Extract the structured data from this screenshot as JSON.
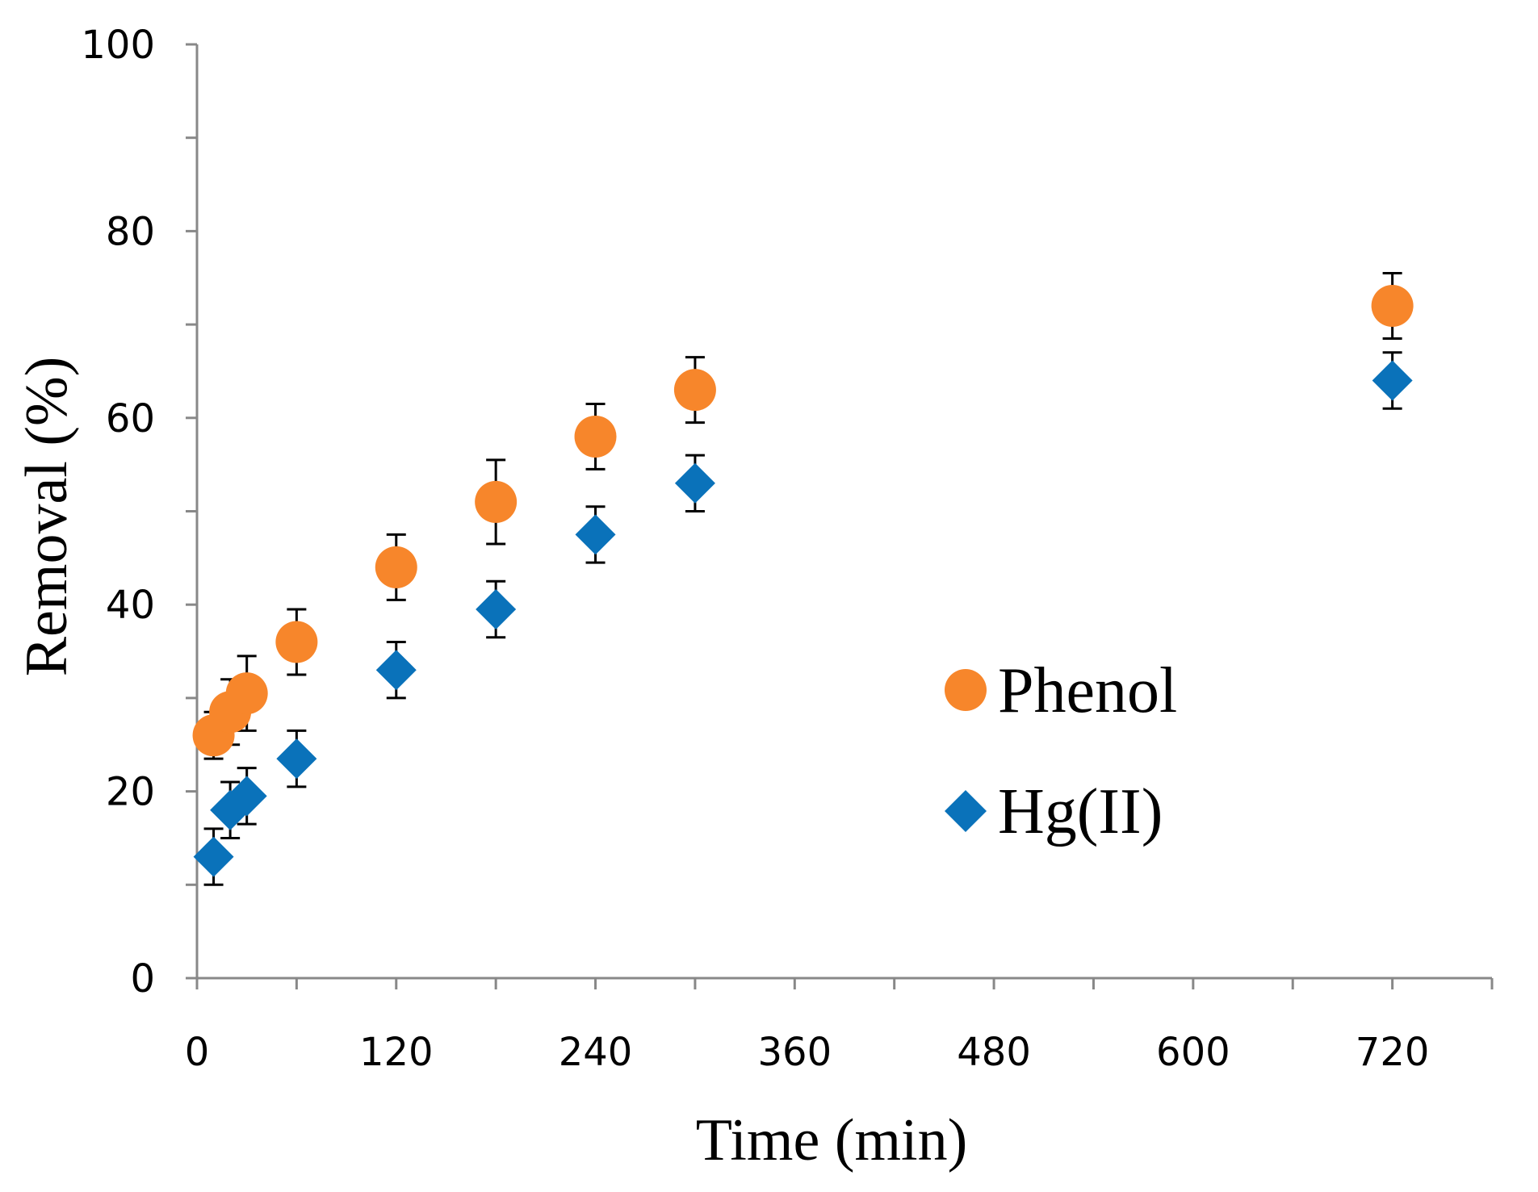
{
  "chart_data": {
    "type": "scatter",
    "title": "",
    "xlabel": "Time (min)",
    "ylabel": "Removal (%)",
    "xlim": [
      0,
      780
    ],
    "ylim": [
      0,
      100
    ],
    "x_ticks": [
      0,
      120,
      240,
      360,
      480,
      600,
      720
    ],
    "y_ticks": [
      0,
      20,
      40,
      60,
      80,
      100
    ],
    "legend_position": "center-right",
    "series": [
      {
        "name": "Phenol",
        "marker": "circle",
        "color": "#F7862B",
        "x": [
          10,
          20,
          30,
          60,
          120,
          180,
          240,
          300,
          720
        ],
        "values": [
          26,
          28.5,
          30.5,
          36,
          44,
          51,
          58,
          63,
          72
        ],
        "error": [
          2.5,
          3.5,
          4,
          3.5,
          3.5,
          4.5,
          3.5,
          3.5,
          3.5
        ]
      },
      {
        "name": "Hg(II)",
        "marker": "diamond",
        "color": "#0A72BA",
        "x": [
          10,
          20,
          30,
          60,
          120,
          180,
          240,
          300,
          720
        ],
        "values": [
          13,
          18,
          19.5,
          23.5,
          33,
          39.5,
          47.5,
          53,
          64
        ],
        "error": [
          3,
          3,
          3,
          3,
          3,
          3,
          3,
          3,
          3
        ]
      }
    ]
  }
}
